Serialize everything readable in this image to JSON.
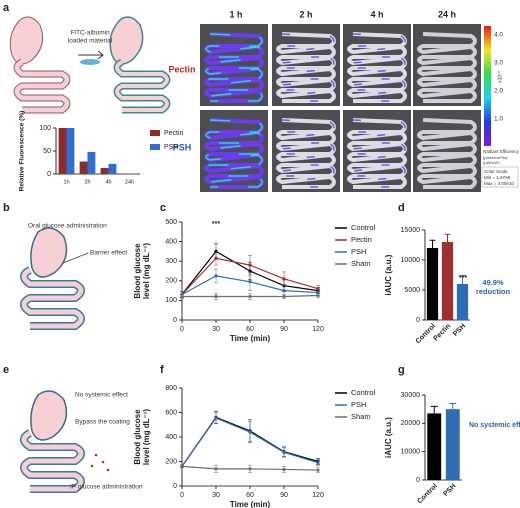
{
  "panel_labels": [
    "a",
    "b",
    "c",
    "d",
    "e",
    "f",
    "g"
  ],
  "panel_a": {
    "carrier_label": [
      "FITC-albumin",
      "loaded material"
    ],
    "time_labels": [
      "1 h",
      "2 h",
      "4 h",
      "24 h"
    ],
    "row_labels": [
      "Pectin",
      "PSH"
    ],
    "colorbar_labels": [
      "4.0",
      "3.0",
      "2.0",
      "1.0"
    ],
    "colorbar_unit": "x10¹⁰",
    "colorbar_title": [
      "Radiant Efficiency",
      "(p/sec/cm²/sr)",
      "(μW/cm²)"
    ],
    "color_scale": [
      "Color Scale",
      "Min = 1.97e8",
      "Max = 4.00e10"
    ]
  },
  "panel_b": {
    "labels": [
      "Oral glucose administration",
      "Barrier effect"
    ]
  },
  "panel_e": {
    "labels": [
      "No systemic effect",
      "Bypass the coating",
      "IP glucose administration"
    ]
  },
  "chart_data": [
    {
      "type": "bar",
      "ylabel": [
        "Relative Fluorescence (%)"
      ],
      "categories": [
        "1h",
        "2h",
        "4h",
        "24h"
      ],
      "series": [
        {
          "name": "Pectin",
          "color": "#8e2b2b",
          "values": [
            100,
            27,
            13,
            1
          ]
        },
        {
          "name": "PSH",
          "color": "#2f6fcf",
          "values": [
            100,
            48,
            22,
            1
          ]
        }
      ],
      "ylim": [
        0,
        100
      ],
      "yticks": [
        0,
        50,
        100
      ],
      "legend": "right"
    },
    {
      "type": "line",
      "xlabel": "Time (min)",
      "ylabel": [
        "Blood glucose",
        "level (mg dL⁻¹)"
      ],
      "x": [
        0,
        30,
        60,
        90,
        120
      ],
      "xlim": [
        0,
        120
      ],
      "xticks": [
        0,
        30,
        60,
        90,
        120
      ],
      "ylim": [
        0,
        500
      ],
      "yticks": [
        0,
        100,
        200,
        300,
        400,
        500
      ],
      "series": [
        {
          "name": "Control",
          "color": "#000000",
          "values": [
            130,
            350,
            250,
            175,
            150
          ],
          "errors": [
            15,
            40,
            45,
            30,
            15
          ]
        },
        {
          "name": "Pectin",
          "color": "#a0302d",
          "values": [
            130,
            315,
            280,
            210,
            160
          ],
          "errors": [
            15,
            35,
            50,
            35,
            15
          ]
        },
        {
          "name": "PSH",
          "color": "#2e6db4",
          "values": [
            130,
            225,
            195,
            150,
            140
          ],
          "errors": [
            15,
            35,
            45,
            30,
            15
          ]
        },
        {
          "name": "Sham",
          "color": "#6e6e6e",
          "values": [
            120,
            120,
            120,
            120,
            125
          ],
          "errors": [
            10,
            15,
            15,
            10,
            10
          ]
        }
      ],
      "legend": "right",
      "annotations": [
        "***"
      ]
    },
    {
      "type": "bar",
      "ylabel": [
        "iAUC (a.u.)"
      ],
      "categories": [
        "Control",
        "Pectin",
        "PSH"
      ],
      "values": [
        12000,
        13000,
        6000
      ],
      "errors": [
        1300,
        1300,
        1400
      ],
      "colors": [
        "#000000",
        "#a0302d",
        "#2e6db4"
      ],
      "ylim": [
        0,
        15000
      ],
      "yticks": [
        0,
        5000,
        10000,
        15000
      ],
      "annotations": [
        "***",
        "49.9%",
        "reduction"
      ]
    },
    {
      "type": "line",
      "xlabel": "Time (min)",
      "ylabel": [
        "Blood glucose",
        "level (mg dL⁻¹)"
      ],
      "x": [
        0,
        30,
        60,
        90,
        120
      ],
      "xlim": [
        0,
        120
      ],
      "xticks": [
        0,
        30,
        60,
        90,
        120
      ],
      "ylim": [
        0,
        800
      ],
      "yticks": [
        0,
        200,
        400,
        600,
        800
      ],
      "series": [
        {
          "name": "Control",
          "color": "#000000",
          "values": [
            160,
            560,
            450,
            280,
            200
          ],
          "errors": [
            10,
            50,
            90,
            40,
            25
          ]
        },
        {
          "name": "PSH",
          "color": "#2e6db4",
          "values": [
            160,
            555,
            440,
            275,
            190
          ],
          "errors": [
            10,
            45,
            85,
            40,
            25
          ]
        },
        {
          "name": "Sham",
          "color": "#6e6e6e",
          "values": [
            160,
            140,
            140,
            135,
            130
          ],
          "errors": [
            10,
            30,
            30,
            25,
            20
          ]
        }
      ],
      "legend": "right"
    },
    {
      "type": "bar",
      "ylabel": [
        "iAUC (a.u.)"
      ],
      "categories": [
        "Control",
        "PSH"
      ],
      "values": [
        23500,
        25000
      ],
      "errors": [
        2500,
        2000
      ],
      "colors": [
        "#000000",
        "#2e6db4"
      ],
      "ylim": [
        0,
        30000
      ],
      "yticks": [
        0,
        10000,
        20000,
        30000
      ],
      "annotations": [
        "No systemic effect"
      ]
    }
  ]
}
